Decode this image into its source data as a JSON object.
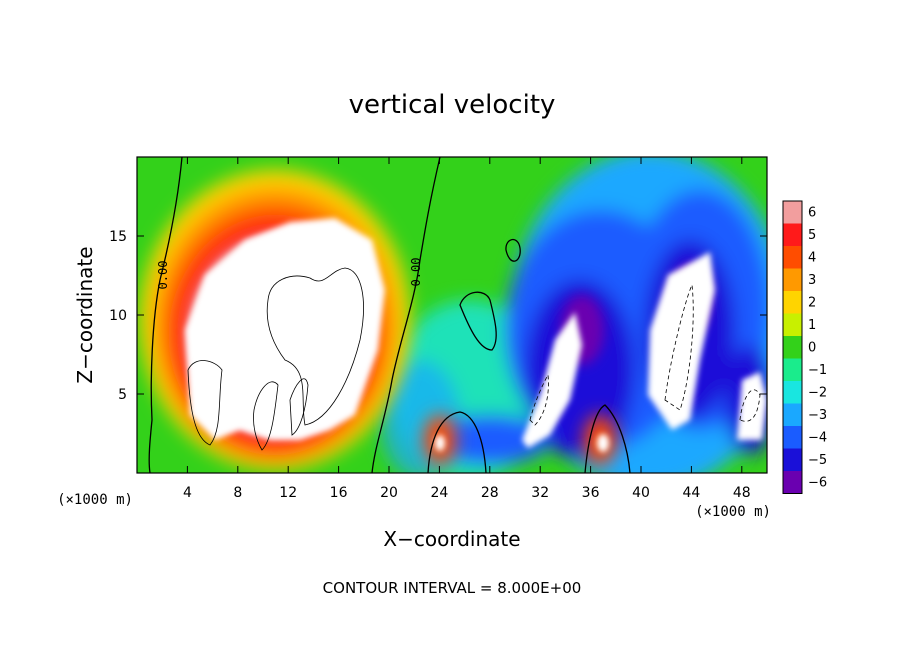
{
  "chart_data": {
    "type": "heatmap",
    "title": "vertical velocity",
    "xlabel": "X−coordinate",
    "ylabel": "Z−coordinate",
    "x_unit": "(×1000 m)",
    "x_unit_right": "(×1000 m)",
    "xlim": [
      0,
      50
    ],
    "ylim": [
      0,
      20
    ],
    "x_ticks": [
      4,
      8,
      12,
      16,
      20,
      24,
      28,
      32,
      36,
      40,
      44,
      48
    ],
    "y_ticks": [
      5,
      10,
      15
    ],
    "colorbar": {
      "levels": [
        6,
        5,
        4,
        3,
        2,
        1,
        0,
        -1,
        -2,
        -3,
        -4,
        -5,
        -6
      ],
      "colors": [
        "#f29e9e",
        "#ff1a1a",
        "#ff4d00",
        "#ff9900",
        "#ffd400",
        "#c8f000",
        "#33d11a",
        "#1aec8c",
        "#19e6e0",
        "#1aa8ff",
        "#1a5cff",
        "#1a10d8",
        "#6a00b0"
      ]
    },
    "contour_labels": [
      "0.00",
      "0.00"
    ],
    "footer": "CONTOUR INTERVAL = 8.000E+00"
  }
}
